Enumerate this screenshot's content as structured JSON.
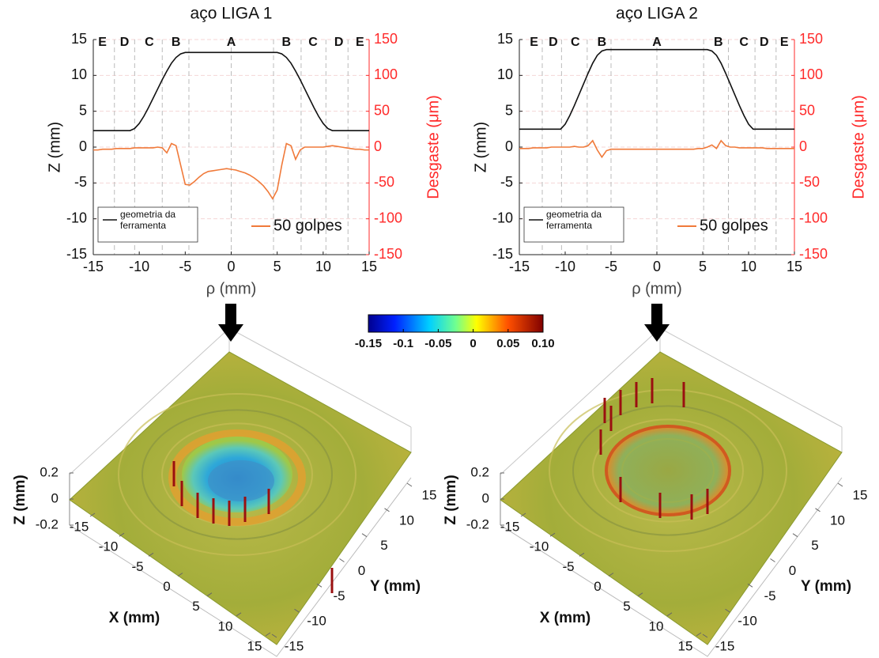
{
  "chart_data": [
    {
      "type": "line",
      "title": "aço LIGA 1",
      "xlabel": "ρ (mm)",
      "ylabel": "Z (mm)",
      "y2label": "Desgaste (μm)",
      "xlim": [
        -15,
        15
      ],
      "xticks": [
        -15,
        -10,
        -5,
        0,
        5,
        10,
        15
      ],
      "ylim": [
        -15,
        15
      ],
      "yticks": [
        -15,
        -10,
        -5,
        0,
        5,
        10,
        15
      ],
      "y2lim": [
        -150,
        150
      ],
      "y2ticks": [
        -150,
        -100,
        -50,
        0,
        50,
        100,
        150
      ],
      "y2color": "#ff2a2a",
      "grid": true,
      "zones": {
        "labels": [
          "E",
          "D",
          "C",
          "B",
          "A",
          "B",
          "C",
          "D",
          "E"
        ],
        "positions": [
          -14,
          -11.6,
          -8.9,
          -6,
          0,
          6,
          8.9,
          11.7,
          14
        ],
        "boundaries": [
          -12.7,
          -10.5,
          -7.5,
          -4.6,
          0,
          4.6,
          7.6,
          10.3,
          12.7
        ]
      },
      "x": [
        -15,
        -14.5,
        -14,
        -13.5,
        -13,
        -12.5,
        -12,
        -11.5,
        -11,
        -10.5,
        -10,
        -9.5,
        -9,
        -8.5,
        -8,
        -7.5,
        -7,
        -6.5,
        -6,
        -5.5,
        -5,
        -4.5,
        -4,
        -3.5,
        -3,
        -2.5,
        -2,
        -1.5,
        -1,
        -0.5,
        0,
        0.5,
        1,
        1.5,
        2,
        2.5,
        3,
        3.5,
        4,
        4.5,
        5,
        5.5,
        6,
        6.5,
        7,
        7.5,
        8,
        8.5,
        9,
        9.5,
        10,
        10.5,
        11,
        11.5,
        12,
        12.5,
        13,
        13.5,
        14,
        14.5,
        15
      ],
      "series": [
        {
          "name": "geometria da ferramenta",
          "color": "#111111",
          "axis": "y",
          "values": [
            2.3,
            2.3,
            2.3,
            2.3,
            2.3,
            2.3,
            2.3,
            2.3,
            2.3,
            2.6,
            3.3,
            4.3,
            5.5,
            6.8,
            8.1,
            9.4,
            10.6,
            11.7,
            12.5,
            13.0,
            13.2,
            13.2,
            13.2,
            13.2,
            13.2,
            13.2,
            13.2,
            13.2,
            13.2,
            13.2,
            13.2,
            13.2,
            13.2,
            13.2,
            13.2,
            13.2,
            13.2,
            13.2,
            13.2,
            13.2,
            13.2,
            13.0,
            12.5,
            11.7,
            10.6,
            9.4,
            8.1,
            6.8,
            5.5,
            4.3,
            3.3,
            2.6,
            2.3,
            2.3,
            2.3,
            2.3,
            2.3,
            2.3,
            2.3,
            2.3,
            2.3
          ]
        },
        {
          "name": "50 golpes",
          "color": "#f07a3a",
          "axis": "y2",
          "values": [
            -4,
            -4,
            -3,
            -3,
            -3,
            -2,
            -2,
            -2,
            -2,
            -1,
            -1,
            -1,
            -1,
            -1,
            0,
            -1,
            -8,
            5,
            2,
            -25,
            -52,
            -53,
            -48,
            -42,
            -37,
            -34,
            -33,
            -32,
            -31,
            -30,
            -31,
            -32,
            -34,
            -36,
            -39,
            -43,
            -48,
            -54,
            -62,
            -72,
            -60,
            -25,
            5,
            2,
            -17,
            -4,
            0,
            0,
            0,
            0,
            0,
            1,
            2,
            1,
            0,
            -1,
            -2,
            -3,
            -3,
            -4,
            -4
          ]
        }
      ]
    },
    {
      "type": "line",
      "title": "aço LIGA 2",
      "xlabel": "ρ (mm)",
      "ylabel": "Z (mm)",
      "y2label": "Desgaste (μm)",
      "xlim": [
        -15,
        15
      ],
      "xticks": [
        -15,
        -10,
        -5,
        0,
        5,
        10,
        15
      ],
      "ylim": [
        -15,
        15
      ],
      "yticks": [
        -15,
        -10,
        -5,
        0,
        5,
        10,
        15
      ],
      "y2lim": [
        -150,
        150
      ],
      "y2ticks": [
        -150,
        -100,
        -50,
        0,
        50,
        100,
        150
      ],
      "y2color": "#ff2a2a",
      "grid": true,
      "zones": {
        "labels": [
          "E",
          "D",
          "C",
          "B",
          "A",
          "B",
          "C",
          "D",
          "E"
        ],
        "positions": [
          -13.4,
          -11.3,
          -8.9,
          -6,
          0,
          6.7,
          9.5,
          11.7,
          13.9
        ],
        "boundaries": [
          -12.5,
          -10.4,
          -7.6,
          -5,
          0,
          5.1,
          7.8,
          10.7,
          13
        ]
      },
      "x": [
        -15,
        -14.5,
        -14,
        -13.5,
        -13,
        -12.5,
        -12,
        -11.5,
        -11,
        -10.5,
        -10,
        -9.5,
        -9,
        -8.5,
        -8,
        -7.5,
        -7,
        -6.5,
        -6,
        -5.5,
        -5,
        -4.5,
        -4,
        -3.5,
        -3,
        -2.5,
        -2,
        -1.5,
        -1,
        -0.5,
        0,
        0.5,
        1,
        1.5,
        2,
        2.5,
        3,
        3.5,
        4,
        4.5,
        5,
        5.5,
        6,
        6.5,
        7,
        7.5,
        8,
        8.5,
        9,
        9.5,
        10,
        10.5,
        11,
        11.5,
        12,
        12.5,
        13,
        13.5,
        14,
        14.5,
        15
      ],
      "series": [
        {
          "name": "geometria da ferramenta",
          "color": "#111111",
          "axis": "y",
          "values": [
            2.5,
            2.5,
            2.5,
            2.5,
            2.5,
            2.5,
            2.5,
            2.5,
            2.5,
            2.5,
            3.2,
            4.4,
            5.8,
            7.3,
            8.8,
            10.3,
            11.7,
            12.8,
            13.4,
            13.6,
            13.6,
            13.6,
            13.6,
            13.6,
            13.6,
            13.6,
            13.6,
            13.6,
            13.6,
            13.6,
            13.6,
            13.6,
            13.6,
            13.6,
            13.6,
            13.6,
            13.6,
            13.6,
            13.6,
            13.6,
            13.6,
            13.6,
            13.4,
            12.8,
            11.7,
            10.3,
            8.8,
            7.3,
            5.8,
            4.4,
            3.2,
            2.5,
            2.5,
            2.5,
            2.5,
            2.5,
            2.5,
            2.5,
            2.5,
            2.5,
            2.5
          ]
        },
        {
          "name": "50 golpes",
          "color": "#f07a3a",
          "axis": "y2",
          "values": [
            -2,
            -2,
            -2,
            -1,
            -1,
            -1,
            -1,
            0,
            0,
            0,
            0,
            0,
            1,
            0,
            0,
            2,
            9,
            -4,
            -14,
            -5,
            -3,
            -3,
            -3,
            -3,
            -3,
            -3,
            -3,
            -3,
            -3,
            -3,
            -3,
            -3,
            -3,
            -3,
            -3,
            -3,
            -3,
            -3,
            -3,
            -2,
            -2,
            0,
            3,
            -2,
            9,
            2,
            0,
            0,
            -1,
            -1,
            -1,
            -1,
            -1,
            -1,
            -2,
            -2,
            -2,
            -2,
            -2,
            -2,
            -2
          ]
        }
      ]
    },
    {
      "type": "colorbar",
      "colormap": "jet",
      "clim": [
        -0.15,
        0.1
      ],
      "ticks": [
        -0.15,
        -0.1,
        -0.05,
        0,
        0.05,
        {
          "value": 0.1,
          "label": "0.10"
        }
      ]
    },
    {
      "type": "surface",
      "xlabel": "X (mm)",
      "ylabel": "Y (mm)",
      "zlabel": "Z (mm)",
      "xlim": [
        -15,
        15
      ],
      "xticks": [
        -15,
        -10,
        -5,
        0,
        5,
        10,
        15
      ],
      "ylim": [
        -15,
        15
      ],
      "yticks": [
        -15,
        -10,
        -5,
        0,
        5,
        10,
        15
      ],
      "zlim": [
        -0.2,
        0.2
      ],
      "zticks": [
        -0.2,
        0,
        0.2
      ]
    },
    {
      "type": "surface",
      "xlabel": "X (mm)",
      "ylabel": "Y (mm)",
      "zlabel": "Z (mm)",
      "xlim": [
        -15,
        15
      ],
      "xticks": [
        -15,
        -10,
        -5,
        0,
        5,
        10,
        15
      ],
      "ylim": [
        -15,
        15
      ],
      "yticks": [
        -15,
        -10,
        -5,
        0,
        5,
        10,
        15
      ],
      "zlim": [
        -0.2,
        0.2
      ],
      "zticks": [
        -0.2,
        0,
        0.2
      ]
    }
  ]
}
